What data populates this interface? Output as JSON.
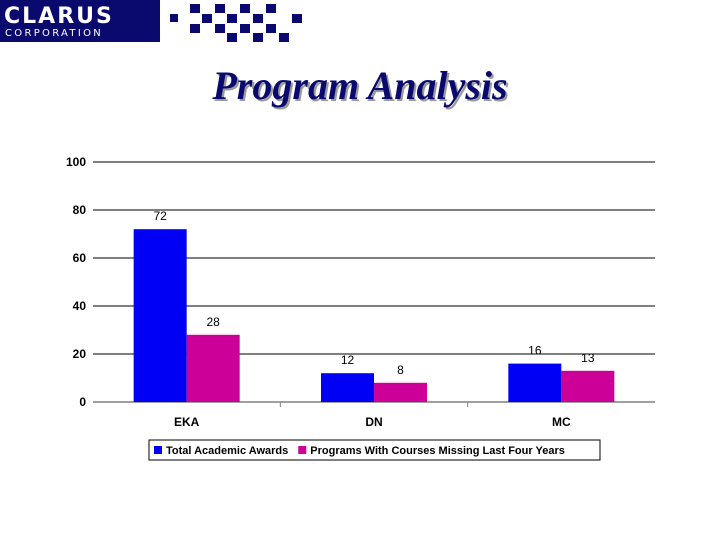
{
  "banner": {
    "company": "CLARUS",
    "sub": "CORPORATION",
    "brand_color": "#0a0a6e"
  },
  "slide": {
    "title": "Program Analysis"
  },
  "chart_data": {
    "type": "bar",
    "title": "",
    "xlabel": "",
    "ylabel": "",
    "categories": [
      "EKA",
      "DN",
      "MC"
    ],
    "series": [
      {
        "name": "Total Academic Awards",
        "values": [
          72,
          12,
          16
        ],
        "color": "#0000f5"
      },
      {
        "name": "Programs With Courses Missing Last Four Years",
        "values": [
          28,
          8,
          13
        ],
        "color": "#cc0099"
      }
    ],
    "ylim": [
      0,
      100
    ],
    "yticks": [
      0,
      20,
      40,
      60,
      80,
      100
    ],
    "grid": true,
    "legend": "bottom"
  }
}
